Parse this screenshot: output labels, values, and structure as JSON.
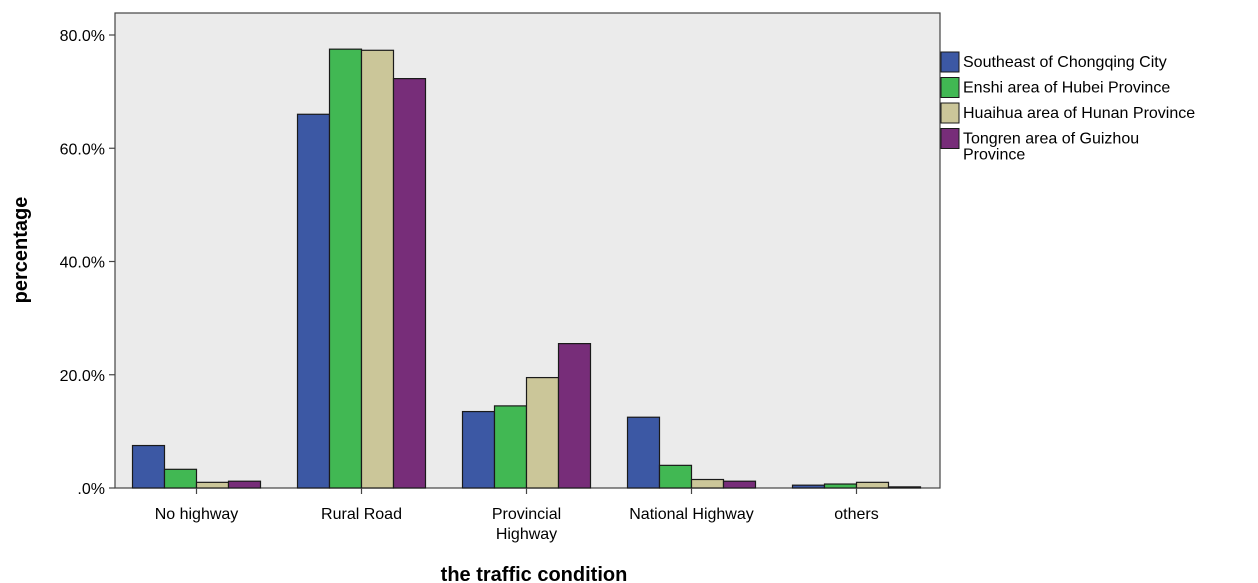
{
  "chart_data": {
    "type": "bar",
    "xlabel": "the traffic condition",
    "ylabel": "percentage",
    "ylim": [
      0,
      80
    ],
    "ytick_values": [
      0,
      20,
      40,
      60,
      80
    ],
    "ytick_labels": [
      ".0%",
      "20.0%",
      "40.0%",
      "60.0%",
      "80.0%"
    ],
    "categories": [
      [
        "No highway"
      ],
      [
        "Rural Road"
      ],
      [
        "Provincial",
        "Highway"
      ],
      [
        "National Highway"
      ],
      [
        "others"
      ]
    ],
    "series": [
      {
        "name": [
          "Southeast of Chongqing City"
        ],
        "color": "#3c58a4",
        "values": [
          7.5,
          66,
          13.5,
          12.5,
          0.5
        ]
      },
      {
        "name": [
          "Enshi area of Hubei Province"
        ],
        "color": "#41b853",
        "values": [
          3.3,
          77.5,
          14.5,
          4.0,
          0.7
        ]
      },
      {
        "name": [
          "Huaihua area of Hunan Province"
        ],
        "color": "#cbc699",
        "values": [
          1.0,
          77.3,
          19.5,
          1.5,
          1.0
        ]
      },
      {
        "name": [
          "Tongren area of Guizhou",
          "Province"
        ],
        "color": "#772d79",
        "values": [
          1.2,
          72.3,
          25.5,
          1.2,
          0.2
        ]
      }
    ],
    "legend_position": "right",
    "grid": false,
    "plot_background": "#ebebeb"
  }
}
